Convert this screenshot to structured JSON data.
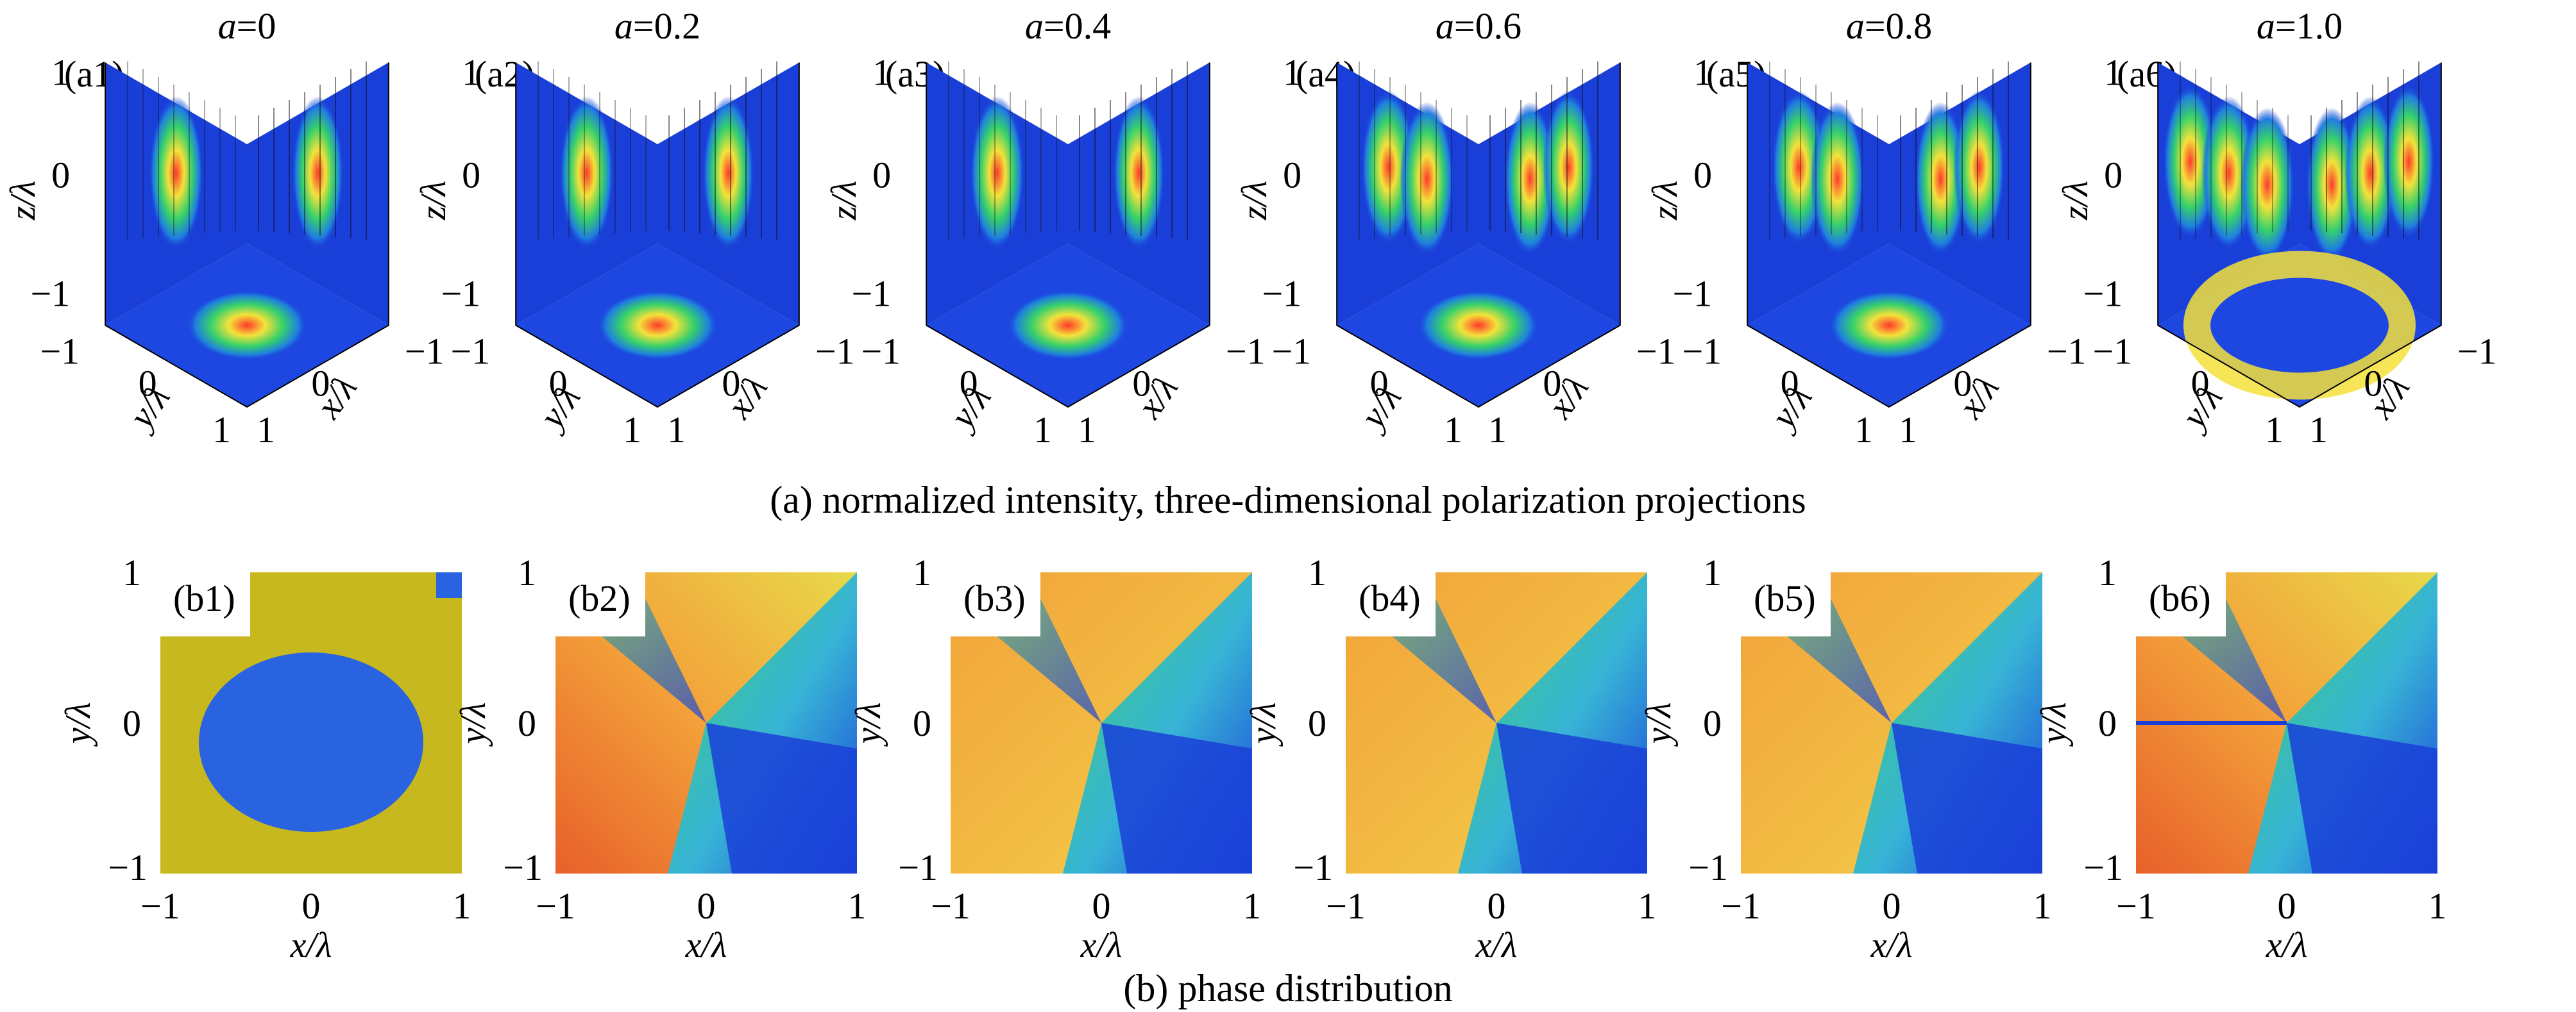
{
  "figure": {
    "row_a": {
      "caption": "(a) normalized intensity, three-dimensional polarization projections",
      "panels": [
        {
          "label": "(a1)",
          "a_symbol": "a",
          "a_value": "=0",
          "spots": 1
        },
        {
          "label": "(a2)",
          "a_symbol": "a",
          "a_value": "=0.2",
          "spots": 1
        },
        {
          "label": "(a3)",
          "a_symbol": "a",
          "a_value": "=0.4",
          "spots": 1
        },
        {
          "label": "(a4)",
          "a_symbol": "a",
          "a_value": "=0.6",
          "spots": 2
        },
        {
          "label": "(a5)",
          "a_symbol": "a",
          "a_value": "=0.8",
          "spots": 2
        },
        {
          "label": "(a6)",
          "a_symbol": "a",
          "a_value": "=1.0",
          "spots": 3
        }
      ],
      "axes": {
        "z_label": "z/λ",
        "y_label": "y/λ",
        "x_label": "x/λ",
        "z_ticks": [
          "1",
          "0",
          "−1"
        ],
        "y_ticks": [
          "−1",
          "0",
          "1"
        ],
        "x_ticks": [
          "−1",
          "0",
          "1"
        ]
      }
    },
    "row_b": {
      "caption": "(b) phase distribution",
      "panels": [
        {
          "label": "(b1)"
        },
        {
          "label": "(b2)"
        },
        {
          "label": "(b3)"
        },
        {
          "label": "(b4)"
        },
        {
          "label": "(b5)"
        },
        {
          "label": "(b6)"
        }
      ],
      "axes": {
        "x_label": "x/λ",
        "y_label": "y/λ",
        "x_ticks": [
          "−1",
          "0",
          "1"
        ],
        "y_ticks": [
          "1",
          "0",
          "−1"
        ]
      }
    },
    "colors": {
      "field_blue": "#1a3fd8",
      "hot_yellow": "#f4e23a",
      "phase_olive": "#c8b820",
      "phase_blue": "#2a63e0",
      "orange": "#f3a23a",
      "green": "#3fcf6a",
      "cyan": "#37b4d6"
    }
  }
}
